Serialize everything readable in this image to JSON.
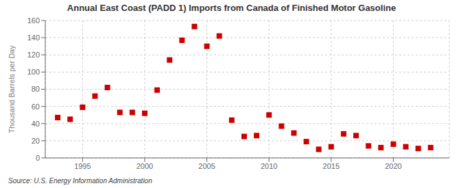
{
  "chart_data": {
    "type": "scatter",
    "title": "Annual East Coast (PADD 1) Imports from Canada of Finished Motor Gasoline",
    "ylabel": "Thousand Barrels per Day",
    "annotations": [
      "Source: U.S. Energy Information Administration"
    ],
    "x": [
      1993,
      1994,
      1995,
      1996,
      1997,
      1998,
      1999,
      2000,
      2001,
      2002,
      2003,
      2004,
      2005,
      2006,
      2007,
      2008,
      2009,
      2010,
      2011,
      2012,
      2013,
      2014,
      2015,
      2016,
      2017,
      2018,
      2019,
      2020,
      2021,
      2022,
      2023
    ],
    "values": [
      47,
      45,
      59,
      72,
      82,
      53,
      53,
      52,
      79,
      114,
      137,
      153,
      130,
      142,
      44,
      25,
      26,
      50,
      37,
      29,
      19,
      10,
      13,
      28,
      26,
      14,
      12,
      16,
      13,
      11,
      12
    ],
    "color": "#cc0000",
    "marker": "square",
    "xlim": [
      1992,
      2024.5
    ],
    "xticks": [
      1995,
      2000,
      2005,
      2010,
      2015,
      2020
    ],
    "ylim": [
      0,
      160
    ],
    "yticks": [
      0,
      20,
      40,
      60,
      80,
      100,
      120,
      140,
      160
    ],
    "grid": true
  }
}
